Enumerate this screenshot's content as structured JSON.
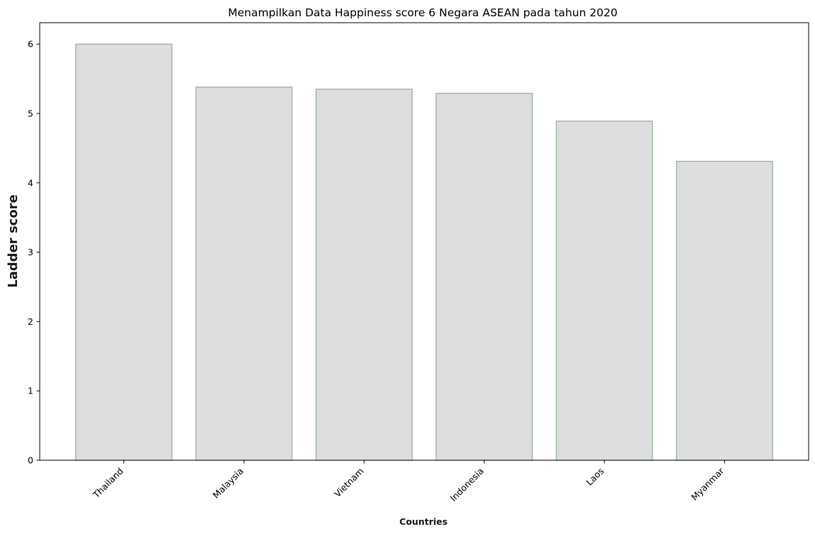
{
  "chart_data": {
    "type": "bar",
    "title": "Menampilkan Data Happiness score 6 Negara ASEAN pada tahun 2020",
    "xlabel": "Countries",
    "ylabel": "Ladder score",
    "categories": [
      "Thailand",
      "Malaysia",
      "Vietnam",
      "Indonesia",
      "Laos",
      "Myanmar"
    ],
    "values": [
      6.0,
      5.38,
      5.35,
      5.29,
      4.89,
      4.31
    ],
    "ylim": [
      0,
      6.3
    ],
    "yticks": [
      "0",
      "1",
      "2",
      "3",
      "4",
      "5",
      "6"
    ],
    "bar_color": "#dddddd",
    "bar_edge_color": "#8fb08f",
    "grid": false,
    "legend": "none"
  }
}
